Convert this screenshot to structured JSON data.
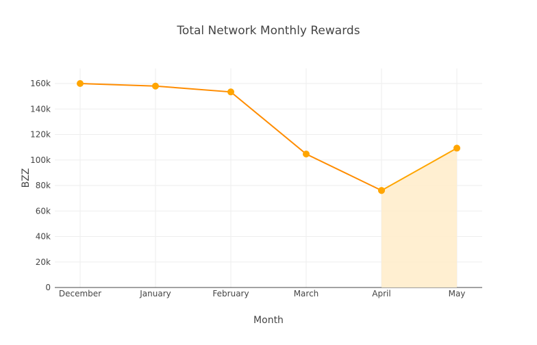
{
  "chart_data": {
    "type": "line",
    "title": "Total Network Monthly Rewards",
    "xlabel": "Month",
    "ylabel": "BZZ",
    "categories": [
      "December",
      "January",
      "February",
      "March",
      "April",
      "May"
    ],
    "ylim": [
      0,
      170000
    ],
    "yticks": [
      0,
      20000,
      40000,
      60000,
      80000,
      100000,
      120000,
      140000,
      160000
    ],
    "ytick_labels": [
      "0",
      "20k",
      "40k",
      "60k",
      "80k",
      "100k",
      "120k",
      "140k",
      "160k"
    ],
    "grid": true,
    "series": [
      {
        "values": [
          160000,
          158000,
          153400,
          104700,
          76100,
          null
        ],
        "line_color": "#ff8c00",
        "marker_color": "#ffa500",
        "fill": false
      },
      {
        "values": [
          null,
          null,
          null,
          null,
          76100,
          109300
        ],
        "line_color": "#ffa500",
        "marker_color": "#ffa500",
        "fill": true,
        "fill_color": "#ffedcc"
      }
    ]
  }
}
